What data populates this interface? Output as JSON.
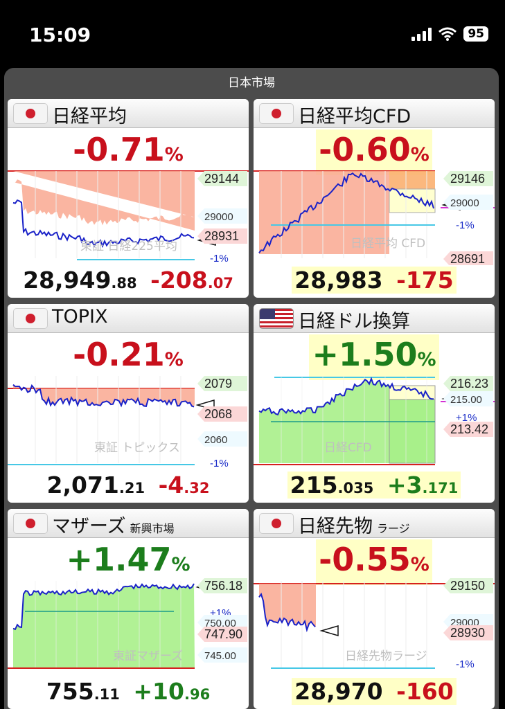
{
  "status": {
    "time": "15:09",
    "battery": "95"
  },
  "app": {
    "title": "日本市場"
  },
  "cards": [
    {
      "id": "nikkei",
      "flag": "jp",
      "title": "日経平均",
      "sub": "",
      "pct": "-0.71",
      "pct_unit": "%",
      "sign": "neg",
      "hl": false,
      "price_main": "28,949",
      "price_dec": ".88",
      "change_main": "-208",
      "change_dec": ".07",
      "watermark": "東証 日経225平均",
      "labels": [
        {
          "text": "29144",
          "kind": "green"
        },
        {
          "text": "29000",
          "kind": "plain"
        },
        {
          "text": "28931",
          "kind": "red"
        },
        {
          "text": "-1%",
          "kind": "pct"
        }
      ]
    },
    {
      "id": "nikkei-cfd",
      "flag": "jp",
      "title": "日経平均CFD",
      "sub": "",
      "pct": "-0.60",
      "pct_unit": "%",
      "sign": "neg",
      "hl": true,
      "price_main": "28,983",
      "price_dec": "",
      "change_main": "-175",
      "change_dec": "",
      "watermark": "日経平均 CFD",
      "labels": [
        {
          "text": "29146",
          "kind": "green"
        },
        {
          "text": "29000",
          "kind": "plain"
        },
        {
          "text": "-1%",
          "kind": "pct"
        },
        {
          "text": "28691",
          "kind": "red"
        }
      ]
    },
    {
      "id": "topix",
      "flag": "jp",
      "title": "TOPIX",
      "sub": "",
      "pct": "-0.21",
      "pct_unit": "%",
      "sign": "neg",
      "hl": false,
      "price_main": "2,071",
      "price_dec": ".21",
      "change_main": "-4",
      "change_dec": ".32",
      "watermark": "東証 トピックス",
      "labels": [
        {
          "text": "2079",
          "kind": "green"
        },
        {
          "text": "2068",
          "kind": "red"
        },
        {
          "text": "2060",
          "kind": "plain"
        },
        {
          "text": "-1%",
          "kind": "pct"
        }
      ]
    },
    {
      "id": "nikkei-usd",
      "flag": "us",
      "title": "日経ドル換算",
      "sub": "",
      "pct": "+1.50",
      "pct_unit": "%",
      "sign": "pos",
      "hl": true,
      "price_main": "215",
      "price_dec": ".035",
      "change_main": "+3",
      "change_dec": ".171",
      "watermark": "日経CFD",
      "labels": [
        {
          "text": "216.23",
          "kind": "green"
        },
        {
          "text": "215.00",
          "kind": "plain"
        },
        {
          "text": "+1%",
          "kind": "pct"
        },
        {
          "text": "213.42",
          "kind": "red"
        }
      ]
    },
    {
      "id": "mothers",
      "flag": "jp",
      "title": "マザーズ",
      "sub": "新興市場",
      "pct": "+1.47",
      "pct_unit": "%",
      "sign": "pos",
      "hl": false,
      "price_main": "755",
      "price_dec": ".11",
      "change_main": "+10",
      "change_dec": ".96",
      "watermark": "東証マザーズ",
      "labels": [
        {
          "text": "756.18",
          "kind": "green"
        },
        {
          "text": "+1%",
          "kind": "pct"
        },
        {
          "text": "750.00",
          "kind": "plain"
        },
        {
          "text": "747.90",
          "kind": "red"
        },
        {
          "text": "745.00",
          "kind": "plain"
        }
      ]
    },
    {
      "id": "nikkei-futures",
      "flag": "jp",
      "title": "日経先物",
      "sub": "ラージ",
      "pct": "-0.55",
      "pct_unit": "%",
      "sign": "neg",
      "hl": true,
      "price_main": "28,970",
      "price_dec": "",
      "change_main": "-160",
      "change_dec": "",
      "watermark": "日経先物ラージ",
      "labels": [
        {
          "text": "29150",
          "kind": "green"
        },
        {
          "text": "29000",
          "kind": "plain"
        },
        {
          "text": "28930",
          "kind": "red"
        },
        {
          "text": "-1%",
          "kind": "pct"
        }
      ]
    }
  ]
}
